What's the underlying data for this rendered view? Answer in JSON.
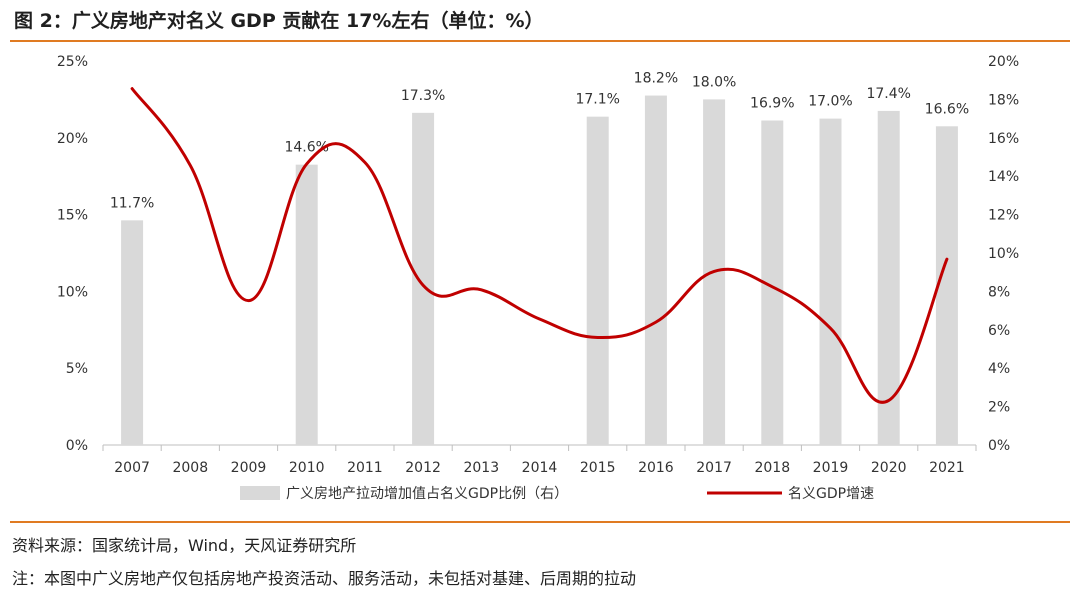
{
  "title": "图 2：广义房地产对名义 GDP 贡献在 17%左右（单位：%）",
  "source": "资料来源：国家统计局，Wind，天风证券研究所",
  "note": "注：本图中广义房地产仅包括房地产投资活动、服务活动，未包括对基建、后周期的拉动",
  "colors": {
    "bar": "#d9d9d9",
    "line": "#c00000",
    "rule": "#e07b22"
  },
  "chart_data": {
    "type": "bar+line",
    "categories": [
      "2007",
      "2008",
      "2009",
      "2010",
      "2011",
      "2012",
      "2013",
      "2014",
      "2015",
      "2016",
      "2017",
      "2018",
      "2019",
      "2020",
      "2021"
    ],
    "left_axis": {
      "ticks": [
        "0%",
        "5%",
        "10%",
        "15%",
        "20%",
        "25%"
      ],
      "range": [
        0,
        25
      ]
    },
    "right_axis": {
      "ticks": [
        "0%",
        "2%",
        "4%",
        "6%",
        "8%",
        "10%",
        "12%",
        "14%",
        "16%",
        "18%",
        "20%"
      ],
      "range": [
        0,
        20
      ]
    },
    "series": [
      {
        "name": "广义房地产拉动增加值占名义GDP比例（右）",
        "type": "bar",
        "axis": "right",
        "values": [
          11.7,
          null,
          null,
          14.6,
          null,
          17.3,
          null,
          null,
          17.1,
          18.2,
          18.0,
          16.9,
          17.0,
          17.4,
          16.6
        ],
        "labels": [
          "11.7%",
          "",
          "",
          "14.6%",
          "",
          "17.3%",
          "",
          "",
          "17.1%",
          "18.2%",
          "18.0%",
          "16.9%",
          "17.0%",
          "17.4%",
          "16.6%"
        ]
      },
      {
        "name": "名义GDP增速",
        "type": "line",
        "axis": "left",
        "values": [
          23.2,
          18.2,
          9.4,
          18.3,
          18.4,
          10.4,
          10.1,
          8.2,
          7.0,
          8.0,
          11.3,
          10.3,
          7.6,
          2.9,
          12.1
        ]
      }
    ],
    "legend_position": "bottom"
  }
}
